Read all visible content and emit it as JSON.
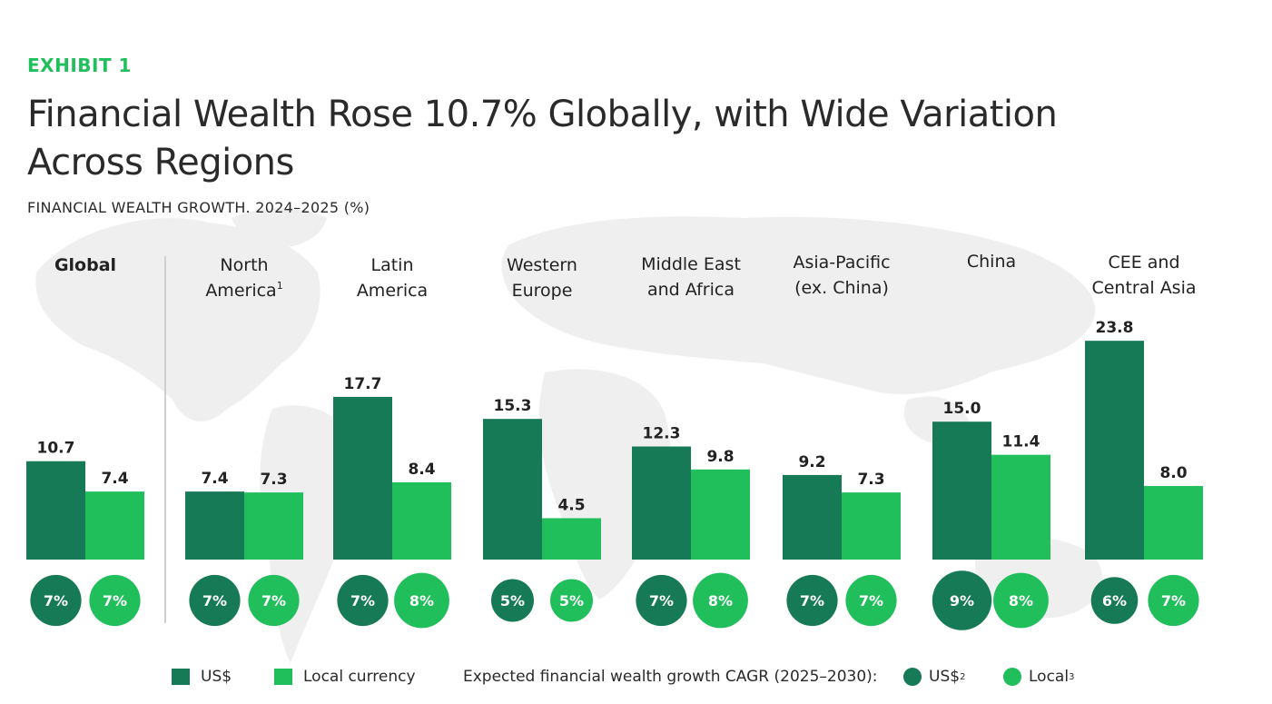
{
  "header": {
    "exhibit": "EXHIBIT 1",
    "title": "Financial Wealth Rose 10.7% Globally, with Wide Variation Across Regions",
    "subtitle": "FINANCIAL WEALTH GROWTH. 2024–2025 (%)"
  },
  "colors": {
    "usd": "#177a56",
    "local": "#21bf5b",
    "accent": "#21bf5b",
    "map": "#efefef",
    "divider": "#cfcfcf"
  },
  "chart_data": {
    "type": "bar",
    "title": "Financial Wealth Rose 10.7% Globally, with Wide Variation Across Regions",
    "subtitle": "FINANCIAL WEALTH GROWTH. 2024–2025 (%)",
    "categories": [
      {
        "line1": "Global",
        "line2": "",
        "sup": ""
      },
      {
        "line1": "North",
        "line2": "America",
        "sup": "1"
      },
      {
        "line1": "Latin",
        "line2": "America",
        "sup": ""
      },
      {
        "line1": "Western",
        "line2": "Europe",
        "sup": ""
      },
      {
        "line1": "Middle East",
        "line2": "and Africa",
        "sup": ""
      },
      {
        "line1": "Asia-Pacific",
        "line2": "(ex. China)",
        "sup": ""
      },
      {
        "line1": "China",
        "line2": "",
        "sup": ""
      },
      {
        "line1": "CEE and",
        "line2": "Central Asia",
        "sup": ""
      }
    ],
    "series": [
      {
        "name": "US$",
        "values": [
          10.7,
          7.4,
          17.7,
          15.3,
          12.3,
          9.2,
          15.0,
          23.8
        ],
        "labels": [
          "10.7",
          "7.4",
          "17.7",
          "15.3",
          "12.3",
          "9.2",
          "15.0",
          "23.8"
        ]
      },
      {
        "name": "Local currency",
        "values": [
          7.4,
          7.3,
          8.4,
          4.5,
          9.8,
          7.3,
          11.4,
          8.0
        ],
        "labels": [
          "7.4",
          "7.3",
          "8.4",
          "4.5",
          "9.8",
          "7.3",
          "11.4",
          "8.0"
        ]
      }
    ],
    "cagr": {
      "label": "Expected financial wealth growth CAGR (2025–2030):",
      "usd": {
        "name": "US$",
        "sup": "2",
        "values": [
          7,
          7,
          7,
          5,
          7,
          7,
          9,
          6
        ],
        "labels": [
          "7%",
          "7%",
          "7%",
          "5%",
          "7%",
          "7%",
          "9%",
          "6%"
        ]
      },
      "local": {
        "name": "Local",
        "sup": "3",
        "values": [
          7,
          7,
          8,
          5,
          8,
          7,
          8,
          7
        ],
        "labels": [
          "7%",
          "7%",
          "8%",
          "5%",
          "8%",
          "7%",
          "8%",
          "7%"
        ]
      }
    },
    "ylim": [
      0,
      25
    ],
    "grid": false,
    "legend": "bottom"
  }
}
